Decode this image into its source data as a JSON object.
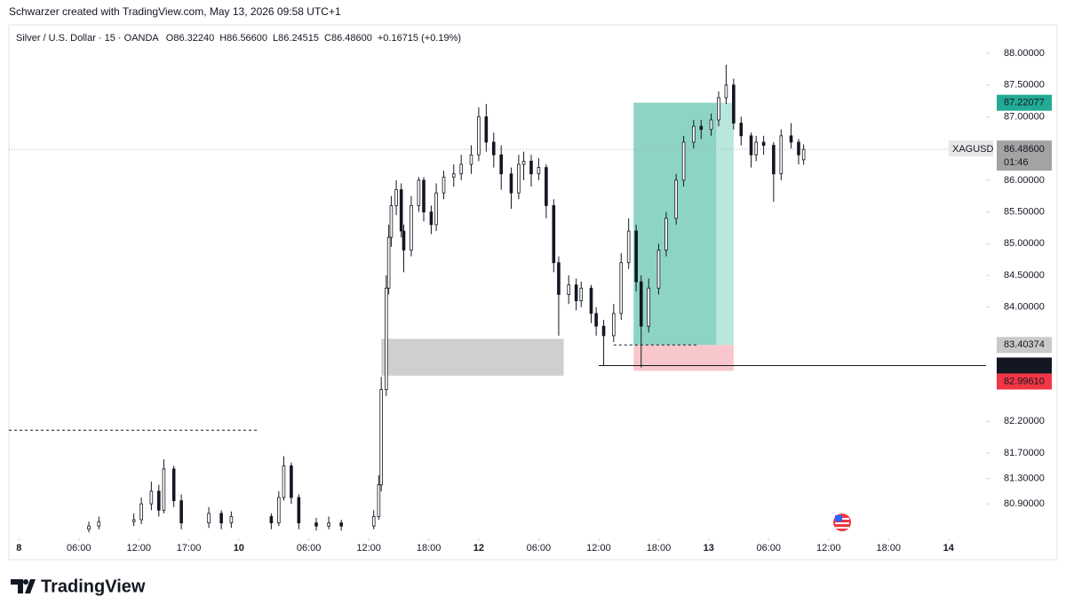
{
  "header": {
    "credit": "Schwarzer created with TradingView.com, May 13, 2026 09:58 UTC+1"
  },
  "footer": {
    "brand": "TradingView"
  },
  "chart_data": {
    "type": "candlestick",
    "title": "Silver / U.S. Dollar · 15 · OANDA",
    "ohlc_header": [
      "O86.32240",
      "H86.56600",
      "L86.24515",
      "C86.48600",
      "+0.16715 (+0.19%)"
    ],
    "up_color": "#ffffff",
    "down_color": "#131722",
    "wick_color": "#131722",
    "x": [
      32,
      36,
      50,
      53,
      57,
      60,
      62,
      66,
      69,
      80,
      85,
      89,
      105,
      108,
      110,
      113,
      116,
      123,
      128,
      133,
      146,
      148,
      149,
      151,
      152,
      153,
      155,
      157,
      158,
      161,
      164,
      166,
      169,
      171,
      174,
      178,
      181,
      185,
      188,
      191,
      194,
      197,
      201,
      204,
      206,
      209,
      212,
      215,
      218,
      220,
      224,
      227,
      229,
      233,
      235,
      238,
      242,
      245,
      248,
      251,
      253,
      256,
      260,
      263,
      267,
      270,
      274,
      277,
      281,
      284,
      287,
      290,
      293,
      297,
      299,
      302,
      306,
      309,
      313,
      316,
      318
    ],
    "open": [
      80.5,
      80.55,
      80.62,
      80.65,
      80.9,
      81.1,
      80.8,
      81.45,
      80.95,
      80.6,
      80.75,
      80.6,
      80.7,
      80.6,
      81.0,
      81.5,
      81.0,
      80.6,
      80.55,
      80.6,
      80.55,
      80.7,
      81.2,
      82.7,
      84.3,
      85.1,
      85.6,
      85.85,
      85.2,
      84.9,
      85.6,
      86.0,
      85.5,
      85.3,
      85.8,
      86.05,
      86.1,
      86.25,
      86.4,
      87.0,
      86.6,
      86.4,
      86.1,
      85.8,
      86.25,
      86.3,
      86.1,
      86.2,
      85.6,
      84.7,
      84.2,
      84.35,
      84.1,
      84.3,
      83.9,
      83.7,
      83.55,
      83.9,
      84.7,
      85.2,
      84.4,
      83.7,
      84.3,
      84.9,
      85.4,
      86.0,
      86.6,
      86.85,
      86.8,
      86.95,
      87.3,
      87.5,
      86.9,
      86.7,
      86.4,
      86.6,
      86.55,
      86.1,
      86.7,
      86.6,
      86.3224
    ],
    "high": [
      80.62,
      80.7,
      80.75,
      81.0,
      81.25,
      81.2,
      81.6,
      81.5,
      81.05,
      80.85,
      80.8,
      80.78,
      80.75,
      81.1,
      81.65,
      81.55,
      81.05,
      80.68,
      80.7,
      80.65,
      80.8,
      81.35,
      82.9,
      84.5,
      85.3,
      85.75,
      86.0,
      85.95,
      85.3,
      85.75,
      86.05,
      86.05,
      85.6,
      85.95,
      86.15,
      86.25,
      86.4,
      86.55,
      87.15,
      87.2,
      86.75,
      86.55,
      86.2,
      86.4,
      86.45,
      86.4,
      86.35,
      86.25,
      85.7,
      84.8,
      84.5,
      84.45,
      84.4,
      84.35,
      84.0,
      83.8,
      84.05,
      84.85,
      85.4,
      85.3,
      84.5,
      84.45,
      85.0,
      85.5,
      86.1,
      86.7,
      86.95,
      86.95,
      87.05,
      87.4,
      87.82,
      87.6,
      87.0,
      86.75,
      86.7,
      86.7,
      86.6,
      86.8,
      86.9,
      86.65,
      86.566
    ],
    "low": [
      80.45,
      80.5,
      80.55,
      80.58,
      80.8,
      80.7,
      80.75,
      80.85,
      80.5,
      80.52,
      80.5,
      80.52,
      80.5,
      80.55,
      80.95,
      80.9,
      80.5,
      80.48,
      80.5,
      80.48,
      80.5,
      80.65,
      81.1,
      82.6,
      84.2,
      84.95,
      85.45,
      85.1,
      84.55,
      84.8,
      85.5,
      85.35,
      85.15,
      85.2,
      85.7,
      85.9,
      86.0,
      86.1,
      86.3,
      86.45,
      86.2,
      85.85,
      85.55,
      85.7,
      86.0,
      85.9,
      86.0,
      85.4,
      84.55,
      83.55,
      84.05,
      83.95,
      84.0,
      83.75,
      83.55,
      83.08,
      83.45,
      83.8,
      84.6,
      84.25,
      83.05,
      83.6,
      84.2,
      84.8,
      85.3,
      85.9,
      86.5,
      86.65,
      86.7,
      86.85,
      87.2,
      86.8,
      86.55,
      86.2,
      86.3,
      86.4,
      85.66,
      86.0,
      86.5,
      86.25,
      86.24515
    ],
    "close": [
      80.55,
      80.62,
      80.65,
      80.9,
      81.1,
      80.8,
      81.45,
      80.95,
      80.6,
      80.75,
      80.6,
      80.7,
      80.6,
      81.0,
      81.5,
      81.0,
      80.6,
      80.55,
      80.6,
      80.55,
      80.7,
      81.2,
      82.7,
      84.3,
      85.1,
      85.6,
      85.85,
      85.2,
      84.9,
      85.6,
      86.0,
      85.5,
      85.3,
      85.8,
      86.05,
      86.1,
      86.25,
      86.4,
      87.0,
      86.6,
      86.4,
      86.1,
      85.8,
      86.25,
      86.3,
      86.1,
      86.2,
      85.6,
      84.7,
      84.2,
      84.35,
      84.1,
      84.3,
      83.9,
      83.7,
      83.55,
      83.9,
      84.7,
      85.2,
      84.4,
      83.7,
      84.3,
      84.9,
      85.4,
      86.0,
      86.6,
      86.85,
      86.8,
      86.95,
      87.3,
      87.5,
      86.9,
      86.7,
      86.4,
      86.6,
      86.55,
      86.1,
      86.7,
      86.6,
      86.4,
      86.486
    ],
    "xlim": [
      0,
      391
    ],
    "ylim": [
      80.37,
      88.28
    ],
    "xticks": [
      {
        "value": 4,
        "label": "8"
      },
      {
        "value": 28,
        "label": "06:00"
      },
      {
        "value": 52,
        "label": "12:00"
      },
      {
        "value": 72,
        "label": "17:00"
      },
      {
        "value": 92,
        "label": "10"
      },
      {
        "value": 120,
        "label": "06:00"
      },
      {
        "value": 144,
        "label": "12:00"
      },
      {
        "value": 168,
        "label": "18:00"
      },
      {
        "value": 188,
        "label": "12"
      },
      {
        "value": 212,
        "label": "06:00"
      },
      {
        "value": 236,
        "label": "12:00"
      },
      {
        "value": 260,
        "label": "18:00"
      },
      {
        "value": 280,
        "label": "13"
      },
      {
        "value": 304,
        "label": "06:00"
      },
      {
        "value": 328,
        "label": "12:00"
      },
      {
        "value": 352,
        "label": "18:00"
      },
      {
        "value": 376,
        "label": "14"
      }
    ],
    "yticks": [
      {
        "value": 88,
        "label": "88.00000"
      },
      {
        "value": 87.5,
        "label": "87.50000"
      },
      {
        "value": 87,
        "label": "87.00000"
      },
      {
        "value": 86,
        "label": "86.00000"
      },
      {
        "value": 85.5,
        "label": "85.50000"
      },
      {
        "value": 85,
        "label": "85.00000"
      },
      {
        "value": 84.5,
        "label": "84.50000"
      },
      {
        "value": 84,
        "label": "84.00000"
      },
      {
        "value": 82.2,
        "label": "82.20000"
      },
      {
        "value": 81.7,
        "label": "81.70000"
      },
      {
        "value": 81.3,
        "label": "81.30000"
      },
      {
        "value": 80.9,
        "label": "80.90000"
      }
    ],
    "grid": false,
    "last_price": {
      "symbol": "XAGUSD",
      "value": 86.486,
      "label": "86.48600",
      "countdown": "01:46",
      "color": "#a3a3a3"
    },
    "price_labels": [
      {
        "value": 87.22077,
        "color": "#22ab94",
        "text_color": "#ffffff"
      },
      {
        "value": 83.40374,
        "color": "#c9c9c9",
        "text_color": "#131722"
      },
      {
        "value": 83.07966,
        "color": "#131722",
        "text_color": "#ffffff"
      },
      {
        "value": {
          "value": 82.9961,
          "label": "82.99610"
        },
        "color": "#f23645",
        "text_color": "#ffffff"
      }
    ],
    "position": {
      "x_start": 250,
      "x_end": 290,
      "x_filled_end": 283,
      "entry": 83.40374,
      "target": 87.22077,
      "stop": 82.9961,
      "target_color": "#b9e6dd",
      "filled_color": "#8dd4c4",
      "stop_color": "#f8c7cb",
      "entry_dash": [
        242,
        276
      ]
    },
    "zone": {
      "x_start": 149,
      "x_end": 222,
      "top": 83.5,
      "bottom": 82.92,
      "color": "#cfcfcf"
    },
    "level_line": {
      "x_start": 236,
      "value": 83.07966
    },
    "dashed_level": {
      "x_start": 0,
      "x_end": 100,
      "value": 82.06
    }
  }
}
